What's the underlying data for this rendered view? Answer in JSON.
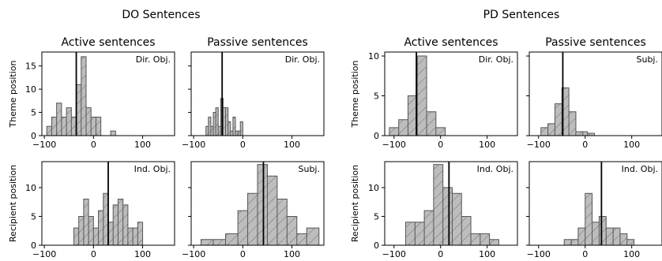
{
  "groups": [
    {
      "title": "DO Sentences"
    },
    {
      "title": "PD Sentences"
    }
  ],
  "row_labels": [
    "Theme position",
    "Recipient position"
  ],
  "chart_data": [
    {
      "type": "bar",
      "group": "DO Sentences",
      "row": "Theme position",
      "title": "Active sentences",
      "corner_label": "Dir. Obj.",
      "bin_edges": [
        -95,
        -85,
        -75,
        -65,
        -55,
        -45,
        -35,
        -25,
        -15,
        -5,
        5,
        15,
        25,
        35,
        45
      ],
      "counts": [
        2,
        4,
        7,
        4,
        6,
        4,
        11,
        17,
        6,
        4,
        4,
        0,
        0,
        1
      ],
      "median": -35,
      "xlim": [
        -105,
        165
      ],
      "ylim": [
        0,
        18
      ],
      "xticks": [
        -100,
        0,
        100
      ],
      "yticks": [
        0,
        5,
        10,
        15
      ]
    },
    {
      "type": "bar",
      "group": "DO Sentences",
      "row": "Theme position",
      "title": "Passive sentences",
      "corner_label": "Dir. Obj.",
      "bin_edges": [
        -75,
        -70,
        -65,
        -60,
        -55,
        -50,
        -45,
        -40,
        -35,
        -30,
        -25,
        -20,
        -15,
        -10,
        -5,
        0
      ],
      "counts": [
        2,
        4,
        2,
        5,
        6,
        2,
        8,
        6,
        6,
        3,
        1,
        4,
        1,
        1,
        3
      ],
      "median": -42,
      "xlim": [
        -105,
        165
      ],
      "ylim": [
        0,
        18
      ],
      "xticks": [
        -100,
        0,
        100
      ],
      "yticks": [
        0,
        5,
        10,
        15
      ]
    },
    {
      "type": "bar",
      "group": "PD Sentences",
      "row": "Theme position",
      "title": "Active sentences",
      "corner_label": "Dir. Obj.",
      "bin_edges": [
        -110,
        -90,
        -70,
        -50,
        -30,
        -10,
        10
      ],
      "counts": [
        1,
        2,
        5,
        10,
        3,
        1
      ],
      "median": -52,
      "xlim": [
        -120,
        165
      ],
      "ylim": [
        0,
        10.5
      ],
      "xticks": [
        -100,
        0,
        100
      ],
      "yticks": [
        0,
        5,
        10
      ]
    },
    {
      "type": "bar",
      "group": "PD Sentences",
      "row": "Theme position",
      "title": "Passive sentences",
      "corner_label": "Subj.",
      "bin_edges": [
        -95,
        -80,
        -65,
        -50,
        -35,
        -20,
        -5,
        5,
        20
      ],
      "counts": [
        1,
        1.5,
        4,
        6,
        3,
        0.5,
        0.5,
        0.3
      ],
      "median": -48,
      "xlim": [
        -120,
        165
      ],
      "ylim": [
        0,
        10.5
      ],
      "xticks": [
        -100,
        0,
        100
      ],
      "yticks": [
        0,
        5,
        10
      ]
    },
    {
      "type": "bar",
      "group": "DO Sentences",
      "row": "Recipient position",
      "title": "",
      "corner_label": "Ind. Obj.",
      "bin_edges": [
        -40,
        -30,
        -20,
        -10,
        0,
        10,
        20,
        30,
        40,
        50,
        60,
        70,
        80,
        90,
        100
      ],
      "counts": [
        3,
        5,
        8,
        5,
        3,
        6,
        9,
        4,
        7,
        8,
        7,
        3,
        3,
        4
      ],
      "median": 30,
      "xlim": [
        -105,
        165
      ],
      "ylim": [
        0,
        14.5
      ],
      "xticks": [
        -100,
        0,
        100
      ],
      "yticks": [
        0,
        5,
        10
      ]
    },
    {
      "type": "bar",
      "group": "DO Sentences",
      "row": "Recipient position",
      "title": "",
      "corner_label": "Subj.",
      "bin_edges": [
        -85,
        -60,
        -35,
        -10,
        10,
        30,
        50,
        70,
        90,
        110,
        130,
        155
      ],
      "counts": [
        1,
        1,
        2,
        6,
        9,
        14,
        12,
        8,
        5,
        2,
        3
      ],
      "median": 42,
      "xlim": [
        -105,
        165
      ],
      "ylim": [
        0,
        14.5
      ],
      "xticks": [
        -100,
        0,
        100
      ],
      "yticks": [
        0,
        5,
        10
      ]
    },
    {
      "type": "bar",
      "group": "PD Sentences",
      "row": "Recipient position",
      "title": "",
      "corner_label": "Ind. Obj.",
      "bin_edges": [
        -75,
        -55,
        -35,
        -15,
        5,
        25,
        45,
        65,
        85,
        105,
        125
      ],
      "counts": [
        4,
        4,
        6,
        14,
        10,
        9,
        5,
        2,
        2,
        1
      ],
      "median": 18,
      "xlim": [
        -120,
        165
      ],
      "ylim": [
        0,
        14.5
      ],
      "xticks": [
        -100,
        0,
        100
      ],
      "yticks": [
        0,
        5,
        10
      ]
    },
    {
      "type": "bar",
      "group": "PD Sentences",
      "row": "Recipient position",
      "title": "",
      "corner_label": "Ind. Obj.",
      "bin_edges": [
        -45,
        -30,
        -15,
        0,
        15,
        30,
        45,
        60,
        75,
        90,
        105
      ],
      "counts": [
        1,
        1,
        3,
        9,
        4,
        5,
        3,
        3,
        2,
        1
      ],
      "median": 35,
      "xlim": [
        -120,
        165
      ],
      "ylim": [
        0,
        14.5
      ],
      "xticks": [
        -100,
        0,
        100
      ],
      "yticks": [
        0,
        5,
        10
      ]
    }
  ]
}
